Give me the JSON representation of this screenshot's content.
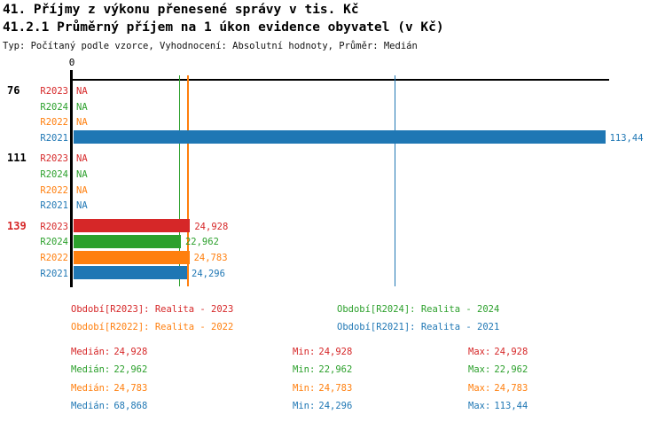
{
  "title_line1": "41. Příjmy z výkonu přenesené správy v tis. Kč",
  "title_line2": "41.2.1 Průměrný příjem na 1 úkon evidence obyvatel (v Kč)",
  "subtitle": "Typ: Počítaný podle vzorce, Vyhodnocení: Absolutní hodnoty, Průměr: Medián",
  "colors": {
    "R2023": "#d62728",
    "R2024": "#2ca02c",
    "R2022": "#ff7f0e",
    "R2021": "#1f77b4",
    "axis": "#000000"
  },
  "chart_data": {
    "type": "bar",
    "orientation": "horizontal",
    "x_axis": {
      "origin_label": "0",
      "min": 0,
      "max_shown": 113.44,
      "grid": false
    },
    "series_order": [
      "R2023",
      "R2024",
      "R2022",
      "R2021"
    ],
    "groups": [
      {
        "label": "76",
        "label_color": "#000000",
        "rows": [
          {
            "series": "R2023",
            "value": null,
            "display": "NA"
          },
          {
            "series": "R2024",
            "value": null,
            "display": "NA"
          },
          {
            "series": "R2022",
            "value": null,
            "display": "NA"
          },
          {
            "series": "R2021",
            "value": 113.44,
            "display": "113,44"
          }
        ]
      },
      {
        "label": "111",
        "label_color": "#000000",
        "rows": [
          {
            "series": "R2023",
            "value": null,
            "display": "NA"
          },
          {
            "series": "R2024",
            "value": null,
            "display": "NA"
          },
          {
            "series": "R2022",
            "value": null,
            "display": "NA"
          },
          {
            "series": "R2021",
            "value": null,
            "display": "NA"
          }
        ]
      },
      {
        "label": "139",
        "label_color": "#d62728",
        "rows": [
          {
            "series": "R2023",
            "value": 24.928,
            "display": "24,928"
          },
          {
            "series": "R2024",
            "value": 22.962,
            "display": "22,962"
          },
          {
            "series": "R2022",
            "value": 24.783,
            "display": "24,783"
          },
          {
            "series": "R2021",
            "value": 24.296,
            "display": "24,296"
          }
        ]
      }
    ],
    "median_lines": [
      {
        "series": "R2024",
        "value": 22.962
      },
      {
        "series": "R2022",
        "value": 24.783
      },
      {
        "series": "R2021",
        "value": 68.868
      }
    ],
    "legend": [
      {
        "series": "R2023",
        "label": "Období[R2023]: Realita - 2023"
      },
      {
        "series": "R2024",
        "label": "Období[R2024]: Realita - 2024"
      },
      {
        "series": "R2022",
        "label": "Období[R2022]: Realita - 2022"
      },
      {
        "series": "R2021",
        "label": "Období[R2021]: Realita - 2021"
      }
    ],
    "stats_labels": {
      "median": "Medián:",
      "min": "Min:",
      "max": "Max:"
    },
    "stats": [
      {
        "series": "R2023",
        "median": "24,928",
        "min": "24,928",
        "max": "24,928"
      },
      {
        "series": "R2024",
        "median": "22,962",
        "min": "22,962",
        "max": "22,962"
      },
      {
        "series": "R2022",
        "median": "24,783",
        "min": "24,783",
        "max": "24,783"
      },
      {
        "series": "R2021",
        "median": "68,868",
        "min": "24,296",
        "max": "113,44"
      }
    ]
  }
}
